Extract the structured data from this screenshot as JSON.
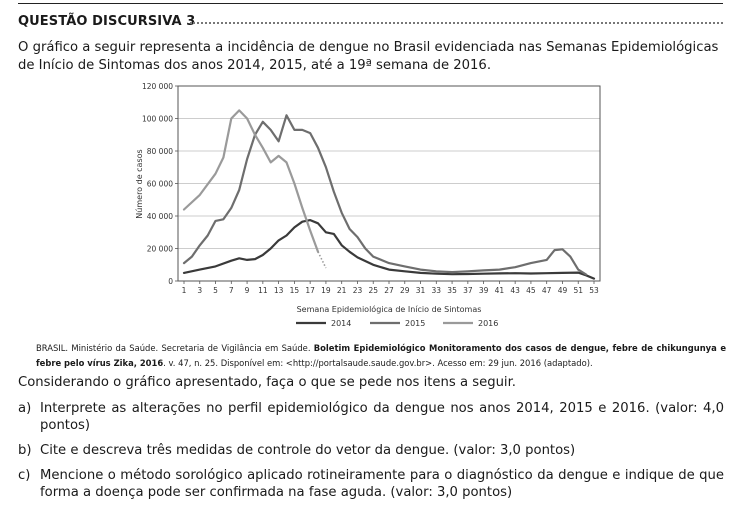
{
  "heading": "QUESTÃO DISCURSIVA 3",
  "intro": "O gráfico a seguir representa a incidência de dengue no Brasil evidenciada nas Semanas Epidemiológicas de Início de Sintomas dos anos 2014, 2015, até a 19ª semana de 2016.",
  "chart_data": {
    "type": "line",
    "xlabel": "Semana Epidemiológica de Início de Sintomas",
    "ylabel": "Número de casos",
    "xlim": [
      1,
      53
    ],
    "ylim": [
      0,
      120000
    ],
    "x_ticks": [
      "1",
      "3",
      "5",
      "7",
      "9",
      "11",
      "13",
      "15",
      "17",
      "19",
      "21",
      "23",
      "25",
      "27",
      "29",
      "31",
      "33",
      "35",
      "37",
      "39",
      "41",
      "43",
      "45",
      "47",
      "49",
      "51",
      "53"
    ],
    "y_ticks": [
      "0",
      "20 000",
      "40 000",
      "60 000",
      "80 000",
      "100 000",
      "120 000"
    ],
    "grid": "horizontal",
    "legend_position": "bottom",
    "series": [
      {
        "name": "2014",
        "color": "#3a3a3a",
        "points": [
          [
            1,
            5000
          ],
          [
            3,
            7000
          ],
          [
            5,
            9000
          ],
          [
            7,
            12500
          ],
          [
            8,
            14000
          ],
          [
            9,
            13000
          ],
          [
            10,
            13500
          ],
          [
            11,
            16000
          ],
          [
            12,
            20000
          ],
          [
            13,
            25000
          ],
          [
            14,
            28000
          ],
          [
            15,
            33000
          ],
          [
            16,
            36500
          ],
          [
            17,
            37500
          ],
          [
            18,
            35500
          ],
          [
            19,
            30000
          ],
          [
            20,
            29000
          ],
          [
            21,
            22000
          ],
          [
            22,
            18000
          ],
          [
            23,
            14500
          ],
          [
            25,
            10000
          ],
          [
            27,
            7000
          ],
          [
            29,
            6000
          ],
          [
            31,
            5000
          ],
          [
            33,
            4500
          ],
          [
            35,
            4200
          ],
          [
            37,
            4300
          ],
          [
            39,
            4500
          ],
          [
            41,
            4700
          ],
          [
            43,
            4800
          ],
          [
            45,
            4600
          ],
          [
            47,
            4800
          ],
          [
            49,
            5000
          ],
          [
            51,
            5200
          ],
          [
            52,
            3500
          ],
          [
            53,
            1500
          ]
        ]
      },
      {
        "name": "2015",
        "color": "#6e6e6e",
        "points": [
          [
            1,
            11000
          ],
          [
            2,
            15000
          ],
          [
            3,
            22000
          ],
          [
            4,
            28000
          ],
          [
            5,
            37000
          ],
          [
            6,
            38000
          ],
          [
            7,
            45000
          ],
          [
            8,
            56000
          ],
          [
            9,
            75000
          ],
          [
            10,
            90000
          ],
          [
            11,
            98000
          ],
          [
            12,
            93000
          ],
          [
            13,
            86000
          ],
          [
            14,
            102000
          ],
          [
            15,
            93000
          ],
          [
            16,
            93000
          ],
          [
            17,
            91000
          ],
          [
            18,
            82000
          ],
          [
            19,
            70000
          ],
          [
            20,
            55000
          ],
          [
            21,
            42000
          ],
          [
            22,
            32000
          ],
          [
            23,
            27000
          ],
          [
            24,
            20000
          ],
          [
            25,
            15000
          ],
          [
            27,
            11000
          ],
          [
            29,
            9000
          ],
          [
            31,
            7000
          ],
          [
            33,
            6000
          ],
          [
            35,
            5500
          ],
          [
            37,
            6000
          ],
          [
            39,
            6500
          ],
          [
            41,
            7000
          ],
          [
            43,
            8500
          ],
          [
            45,
            11000
          ],
          [
            47,
            13000
          ],
          [
            48,
            19000
          ],
          [
            49,
            19500
          ],
          [
            50,
            15000
          ],
          [
            51,
            7000
          ],
          [
            52,
            4000
          ]
        ]
      },
      {
        "name": "2016",
        "color": "#9a9a9a",
        "points": [
          [
            1,
            44000
          ],
          [
            3,
            53000
          ],
          [
            5,
            66000
          ],
          [
            6,
            76000
          ],
          [
            7,
            100000
          ],
          [
            8,
            105000
          ],
          [
            9,
            100000
          ],
          [
            10,
            90000
          ],
          [
            11,
            82000
          ],
          [
            12,
            73000
          ],
          [
            13,
            77000
          ],
          [
            14,
            73000
          ],
          [
            15,
            60000
          ],
          [
            16,
            45000
          ],
          [
            17,
            31000
          ],
          [
            18,
            18000
          ]
        ],
        "dotted_tail": [
          [
            18,
            18000
          ],
          [
            19,
            8000
          ]
        ]
      }
    ]
  },
  "source": {
    "plain_1": "BRASIL. Ministério da Saúde. Secretaria de Vigilância em Saúde. ",
    "bold": "Boletim Epidemiológico Monitoramento dos casos de dengue, febre de chikungunya e febre pelo vírus Zika, 2016",
    "plain_2": ".  v. 47, n. 25. Disponível em: <http://portalsaude.saude.gov.br>. Acesso em: 29 jun. 2016 (adaptado)."
  },
  "prompt": "Considerando o gráfico apresentado, faça o que se pede nos itens a seguir.",
  "items": [
    {
      "label": "a)",
      "text": "Interprete as alterações no perfil epidemiológico da dengue nos anos 2014, 2015 e 2016. (valor: 4,0 pontos)"
    },
    {
      "label": "b)",
      "text": "Cite e descreva três medidas de controle do vetor da dengue. (valor: 3,0 pontos)"
    },
    {
      "label": "c)",
      "text": "Mencione o método sorológico aplicado rotineiramente para o diagnóstico da dengue e indique de que forma a doença pode ser confirmada na fase aguda. (valor: 3,0 pontos)"
    }
  ]
}
